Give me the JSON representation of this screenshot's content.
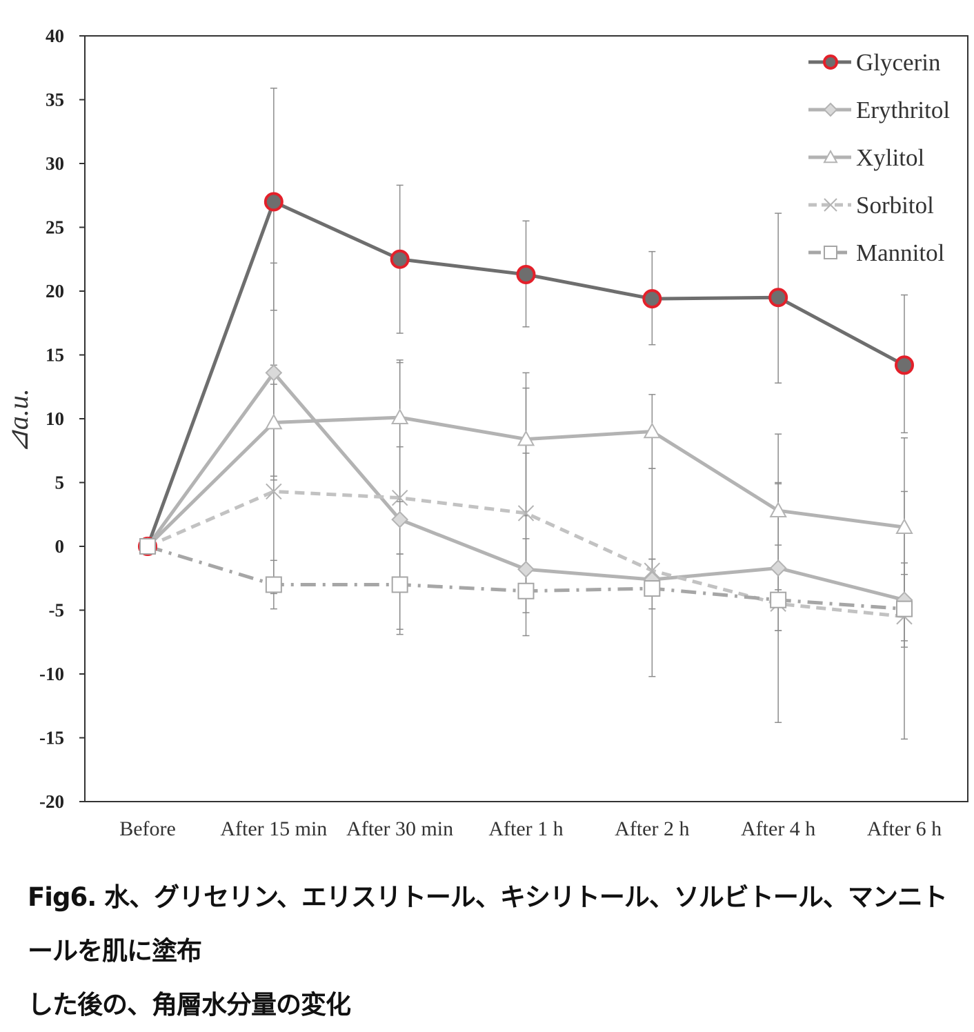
{
  "caption": {
    "line1": "Fig6. 水、グリセリン、エリスリトール、キシリトール、ソルビトール、マンニトールを肌に塗布",
    "line2": "した後の、角層水分量の変化"
  },
  "chart_data": {
    "type": "line",
    "title": "",
    "xlabel": "",
    "ylabel": "⊿a.u.",
    "ylim": [
      -20,
      40
    ],
    "yticks": [
      40,
      35,
      30,
      25,
      20,
      15,
      10,
      5,
      0,
      -5,
      -10,
      -15,
      -20
    ],
    "categories": [
      "Before",
      "After 15 min",
      "After 30 min",
      "After 1 h",
      "After 2 h",
      "After 4 h",
      "After 6 h"
    ],
    "legend_position": "top-right",
    "series": [
      {
        "name": "Glycerin",
        "marker": "circle",
        "line_style": "solid",
        "line_color": "#6e6e6e",
        "marker_fill": "#6e6e6e",
        "marker_stroke": "#e3202a",
        "values": [
          0,
          27.0,
          22.5,
          21.3,
          19.4,
          19.5,
          14.2
        ],
        "err_low": [
          null,
          18.5,
          16.7,
          17.2,
          15.8,
          12.8,
          8.9
        ],
        "err_high": [
          null,
          35.9,
          28.3,
          25.5,
          23.1,
          26.1,
          19.7
        ]
      },
      {
        "name": "Erythritol",
        "marker": "diamond",
        "line_style": "solid",
        "line_color": "#b3b3b3",
        "marker_fill": "#d9d9d9",
        "marker_stroke": "#b3b3b3",
        "values": [
          0,
          13.6,
          2.1,
          -1.8,
          -2.6,
          -1.7,
          -4.2
        ],
        "err_low": [
          null,
          5.5,
          -6.5,
          -5.2,
          -10.2,
          -6.6,
          -7.9
        ],
        "err_high": [
          null,
          22.2,
          14.4,
          12.4,
          6.1,
          5.0,
          8.5
        ]
      },
      {
        "name": "Xylitol",
        "marker": "triangle",
        "line_style": "solid",
        "line_color": "#b3b3b3",
        "marker_fill": "#ffffff",
        "marker_stroke": "#b3b3b3",
        "values": [
          0,
          9.7,
          10.1,
          8.4,
          9.0,
          2.8,
          1.5
        ],
        "err_low": [
          null,
          5.2,
          3.5,
          2.4,
          6.1,
          -3.4,
          -5.4
        ],
        "err_high": [
          null,
          14.2,
          14.6,
          13.6,
          11.9,
          8.8,
          4.3
        ]
      },
      {
        "name": "Sorbitol",
        "marker": "x",
        "line_style": "dashed",
        "line_color": "#c2c2c2",
        "marker_fill": "none",
        "marker_stroke": "#b3b3b3",
        "values": [
          0,
          4.3,
          3.8,
          2.6,
          -1.9,
          -4.5,
          -5.5
        ],
        "err_low": [
          null,
          -3.7,
          -0.6,
          -3.2,
          -3.0,
          -13.8,
          -15.1
        ],
        "err_high": [
          null,
          12.7,
          7.8,
          7.3,
          -1.0,
          4.9,
          -1.3
        ]
      },
      {
        "name": "Mannitol",
        "marker": "square",
        "line_style": "dashdot",
        "line_color": "#a6a6a6",
        "marker_fill": "#ffffff",
        "marker_stroke": "#a6a6a6",
        "values": [
          0,
          -3.0,
          -3.0,
          -3.5,
          -3.3,
          -4.2,
          -4.9
        ],
        "err_low": [
          null,
          -4.9,
          -6.9,
          -7.0,
          -4.9,
          -6.6,
          -7.4
        ],
        "err_high": [
          null,
          -1.1,
          -0.6,
          0.6,
          -1.0,
          0.1,
          -2.2
        ]
      }
    ]
  }
}
